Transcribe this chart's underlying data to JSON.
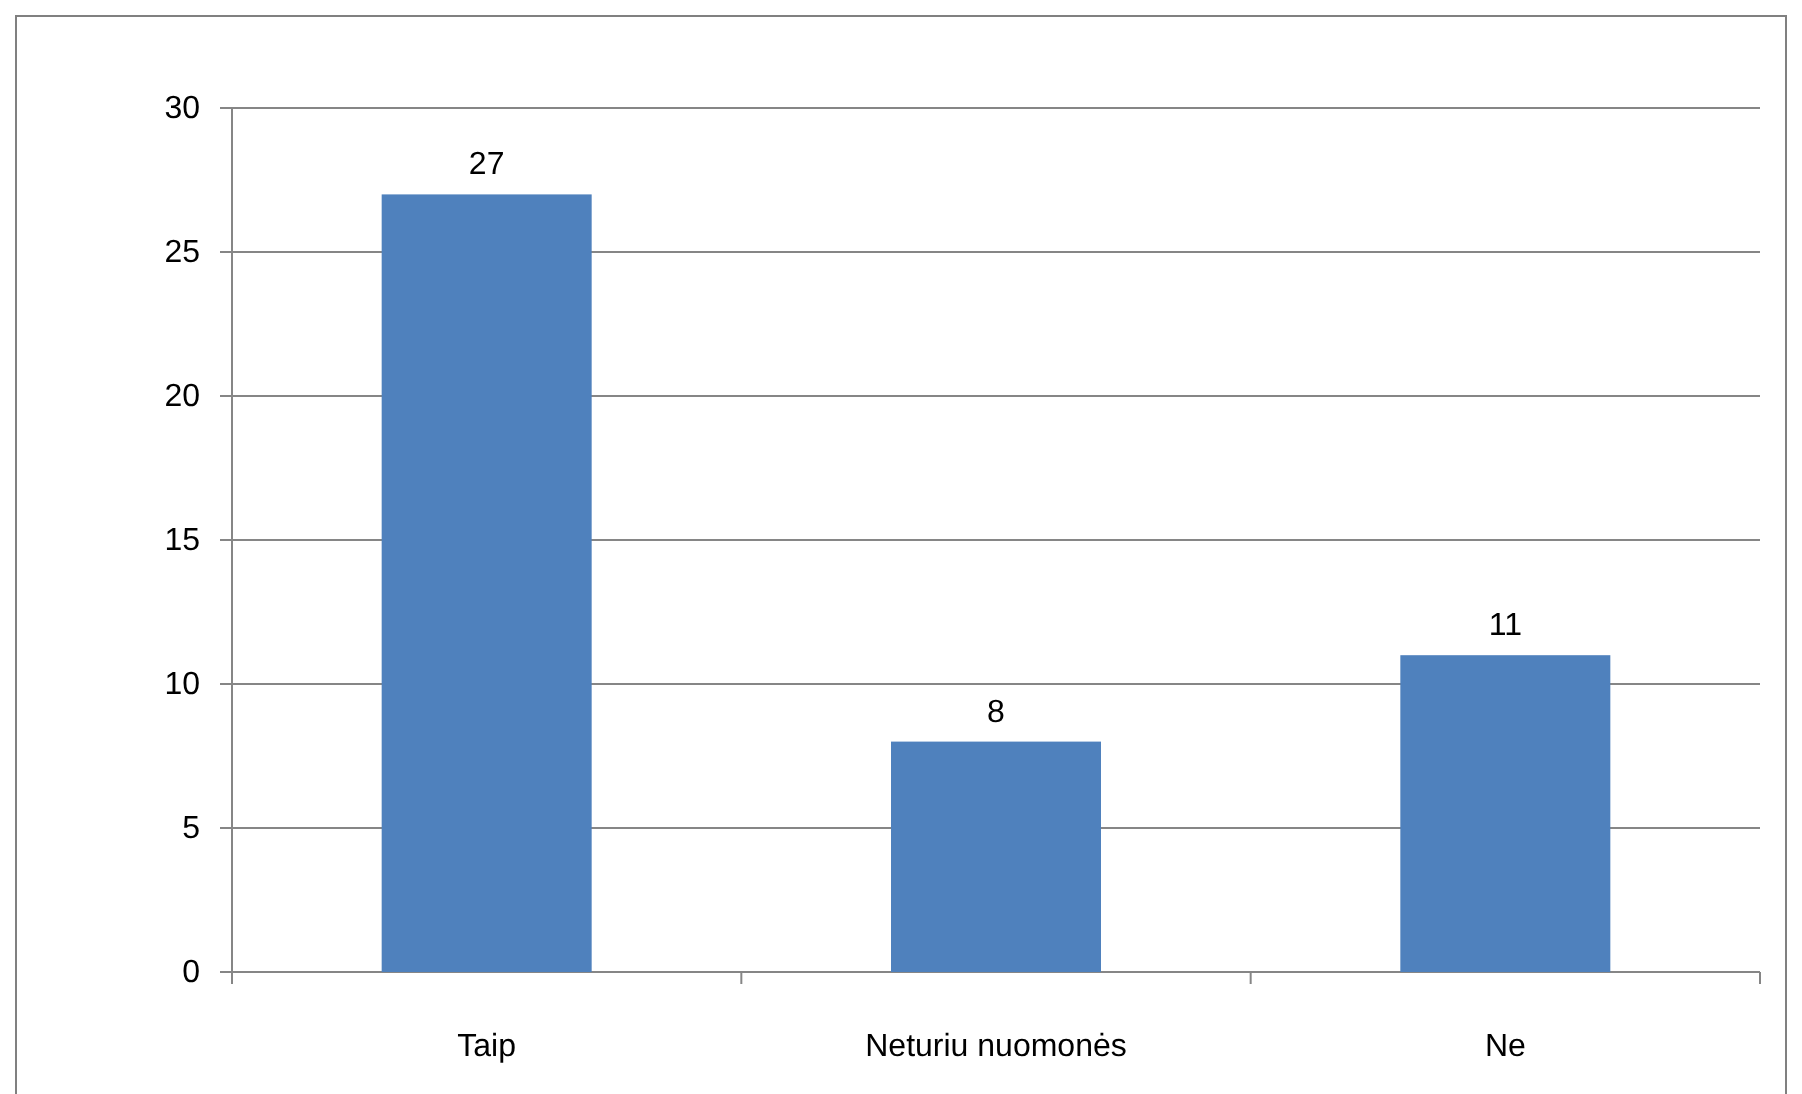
{
  "chart_data": {
    "type": "bar",
    "categories": [
      "Taip",
      "Neturiu nuomonės",
      "Ne"
    ],
    "values": [
      27,
      8,
      11
    ],
    "color": "#4f81bd",
    "ylim": [
      0,
      30
    ],
    "yticks": [
      0,
      5,
      10,
      15,
      20,
      25,
      30
    ],
    "grid": "y",
    "data_labels": true
  }
}
